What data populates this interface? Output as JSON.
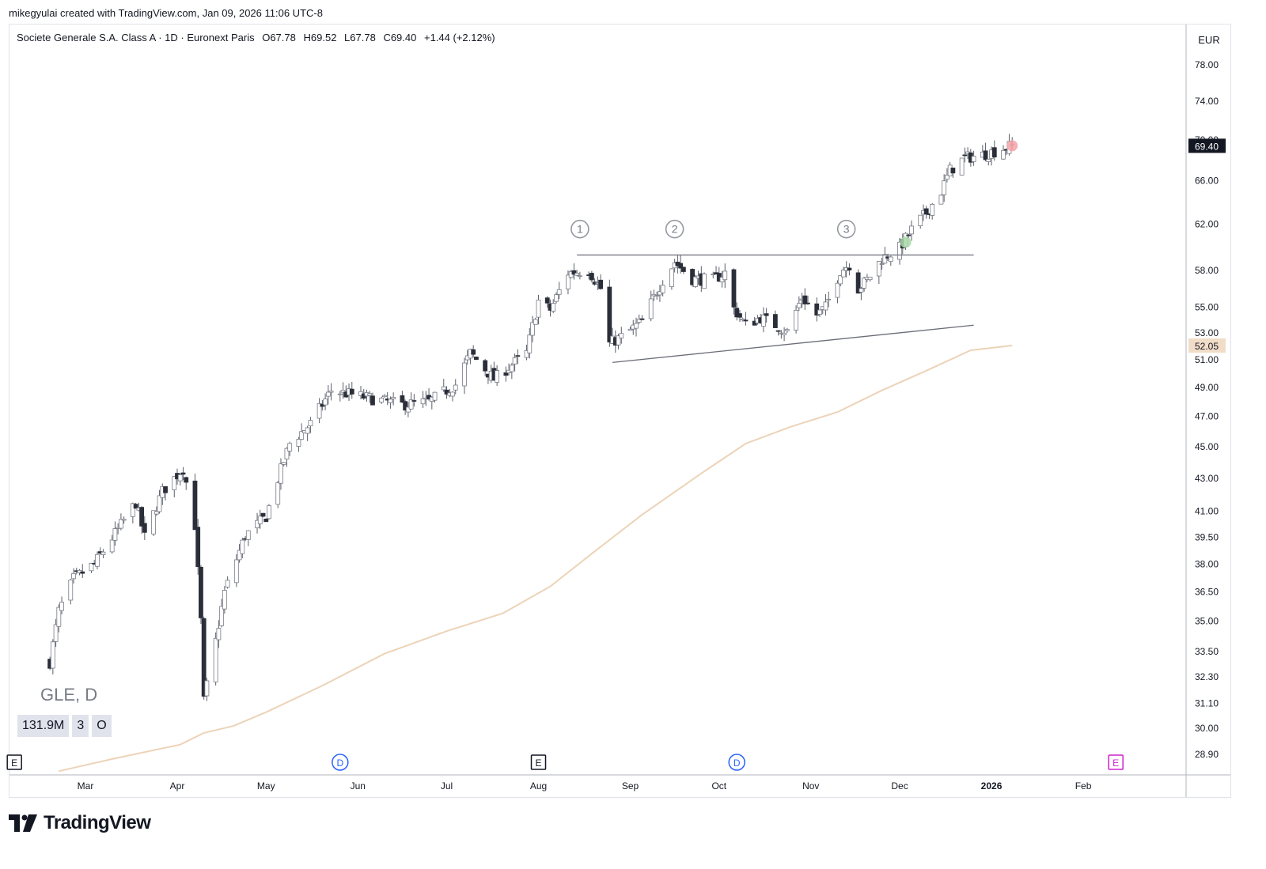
{
  "header": {
    "attribution": "mikegyulai created with TradingView.com, Jan 09, 2026 11:06 UTC-8"
  },
  "legend": {
    "instrument": "Societe Generale S.A. Class A · 1D · Euronext Paris",
    "open": "O67.78",
    "high": "H69.52",
    "low": "L67.78",
    "close": "C69.40",
    "change": "+1.44 (+2.12%)"
  },
  "currency": "EUR",
  "symbol_label": "GLE, D",
  "badges": [
    "131.9M",
    "3",
    "O"
  ],
  "brand": "TradingView",
  "chart_data": {
    "type": "candlestick",
    "y_scale": "log",
    "y_ticks": [
      "78.00",
      "74.00",
      "70.00",
      "66.00",
      "62.00",
      "58.00",
      "55.00",
      "53.00",
      "51.00",
      "49.00",
      "47.00",
      "45.00",
      "43.00",
      "41.00",
      "39.50",
      "38.00",
      "36.50",
      "35.00",
      "33.50",
      "32.30",
      "31.10",
      "30.00",
      "28.90"
    ],
    "x_ticks": [
      "Mar",
      "Apr",
      "May",
      "Jun",
      "Jul",
      "Aug",
      "Sep",
      "Oct",
      "Nov",
      "Dec",
      "2026",
      "Feb"
    ],
    "last_price_label": "69.40",
    "moving_average_label": "52.05",
    "colors": {
      "ma": "#ecd3b8",
      "up_body": "#ffffff",
      "down_body": "#2a2e39",
      "wick": "#5d606b",
      "last_price_bg": "#131722",
      "ma_bg": "#f1dcc8",
      "trendline": "#6a6d78"
    },
    "waypoints": [
      [
        "2025-02-17",
        33.0
      ],
      [
        "2025-02-20",
        35.5
      ],
      [
        "2025-02-25",
        37.2
      ],
      [
        "2025-03-04",
        38.0
      ],
      [
        "2025-03-11",
        39.7
      ],
      [
        "2025-03-18",
        41.5
      ],
      [
        "2025-03-21",
        39.5
      ],
      [
        "2025-03-27",
        42.2
      ],
      [
        "2025-04-03",
        43.6
      ],
      [
        "2025-04-07",
        40.2
      ],
      [
        "2025-04-09",
        35.0
      ],
      [
        "2025-04-10",
        31.2
      ],
      [
        "2025-04-14",
        34.0
      ],
      [
        "2025-04-17",
        36.5
      ],
      [
        "2025-04-24",
        39.6
      ],
      [
        "2025-05-01",
        40.7
      ],
      [
        "2025-05-09",
        45.2
      ],
      [
        "2025-05-16",
        46.5
      ],
      [
        "2025-05-23",
        48.8
      ],
      [
        "2025-06-04",
        48.3
      ],
      [
        "2025-06-16",
        47.8
      ],
      [
        "2025-06-25",
        48.0
      ],
      [
        "2025-07-04",
        49.2
      ],
      [
        "2025-07-09",
        51.5
      ],
      [
        "2025-07-17",
        49.6
      ],
      [
        "2025-07-28",
        51.5
      ],
      [
        "2025-08-01",
        55.5
      ],
      [
        "2025-08-05",
        54.8
      ],
      [
        "2025-08-11",
        57.8
      ],
      [
        "2025-08-18",
        58.0
      ],
      [
        "2025-08-22",
        56.5
      ],
      [
        "2025-08-25",
        52.2
      ],
      [
        "2025-08-29",
        52.7
      ],
      [
        "2025-09-05",
        53.9
      ],
      [
        "2025-09-12",
        57.2
      ],
      [
        "2025-09-16",
        58.7
      ],
      [
        "2025-09-22",
        57.3
      ],
      [
        "2025-09-29",
        57.2
      ],
      [
        "2025-10-03",
        57.8
      ],
      [
        "2025-10-06",
        54.9
      ],
      [
        "2025-10-10",
        53.6
      ],
      [
        "2025-10-15",
        54.2
      ],
      [
        "2025-10-21",
        53.5
      ],
      [
        "2025-10-24",
        53.1
      ],
      [
        "2025-10-29",
        55.8
      ],
      [
        "2025-11-03",
        54.4
      ],
      [
        "2025-11-06",
        55.0
      ],
      [
        "2025-11-11",
        58.0
      ],
      [
        "2025-11-14",
        58.5
      ],
      [
        "2025-11-17",
        56.5
      ],
      [
        "2025-11-20",
        57.2
      ],
      [
        "2025-11-25",
        59.0
      ],
      [
        "2025-12-01",
        59.9
      ],
      [
        "2025-12-05",
        61.5
      ],
      [
        "2025-12-10",
        63.0
      ],
      [
        "2025-12-15",
        65.0
      ],
      [
        "2025-12-18",
        67.0
      ],
      [
        "2025-12-23",
        68.2
      ],
      [
        "2025-12-29",
        68.5
      ],
      [
        "2026-01-08",
        69.4
      ]
    ],
    "moving_average": [
      [
        "2025-02-20",
        28.2
      ],
      [
        "2025-03-10",
        28.7
      ],
      [
        "2025-04-02",
        29.3
      ],
      [
        "2025-04-10",
        29.8
      ],
      [
        "2025-04-20",
        30.1
      ],
      [
        "2025-05-01",
        30.7
      ],
      [
        "2025-05-20",
        31.9
      ],
      [
        "2025-06-10",
        33.4
      ],
      [
        "2025-07-01",
        34.5
      ],
      [
        "2025-07-20",
        35.4
      ],
      [
        "2025-08-05",
        36.8
      ],
      [
        "2025-08-20",
        38.7
      ],
      [
        "2025-09-05",
        40.8
      ],
      [
        "2025-09-25",
        43.3
      ],
      [
        "2025-10-10",
        45.2
      ],
      [
        "2025-10-25",
        46.3
      ],
      [
        "2025-11-10",
        47.3
      ],
      [
        "2025-11-25",
        48.8
      ],
      [
        "2025-12-10",
        50.2
      ],
      [
        "2025-12-25",
        51.7
      ],
      [
        "2026-01-08",
        52.05
      ]
    ],
    "resistance_line": {
      "start": [
        "2025-08-14",
        59.3
      ],
      "end": [
        "2025-12-26",
        59.3
      ]
    },
    "support_line": {
      "start": [
        "2025-08-26",
        50.8
      ],
      "end": [
        "2025-12-26",
        53.6
      ]
    },
    "annotations": [
      {
        "label": "1",
        "date": "2025-08-15",
        "price": 61.0
      },
      {
        "label": "2",
        "date": "2025-09-16",
        "price": 61.0
      },
      {
        "label": "3",
        "date": "2025-11-13",
        "price": 61.0
      }
    ],
    "markers": [
      {
        "kind": "breakout",
        "color": "#a8d8a8",
        "date": "2025-12-03",
        "price": 60.4
      },
      {
        "kind": "latest",
        "color": "#f4a3a8",
        "date": "2026-01-08",
        "price": 69.4
      }
    ],
    "events": [
      {
        "label": "E",
        "date": "2025-02-05",
        "color": "#131722"
      },
      {
        "label": "D",
        "date": "2025-05-26",
        "color": "#2962ff"
      },
      {
        "label": "E",
        "date": "2025-08-01",
        "color": "#131722"
      },
      {
        "label": "D",
        "date": "2025-10-07",
        "color": "#2962ff"
      },
      {
        "label": "E",
        "date": "2026-02-12",
        "color": "#d020d0"
      }
    ]
  }
}
